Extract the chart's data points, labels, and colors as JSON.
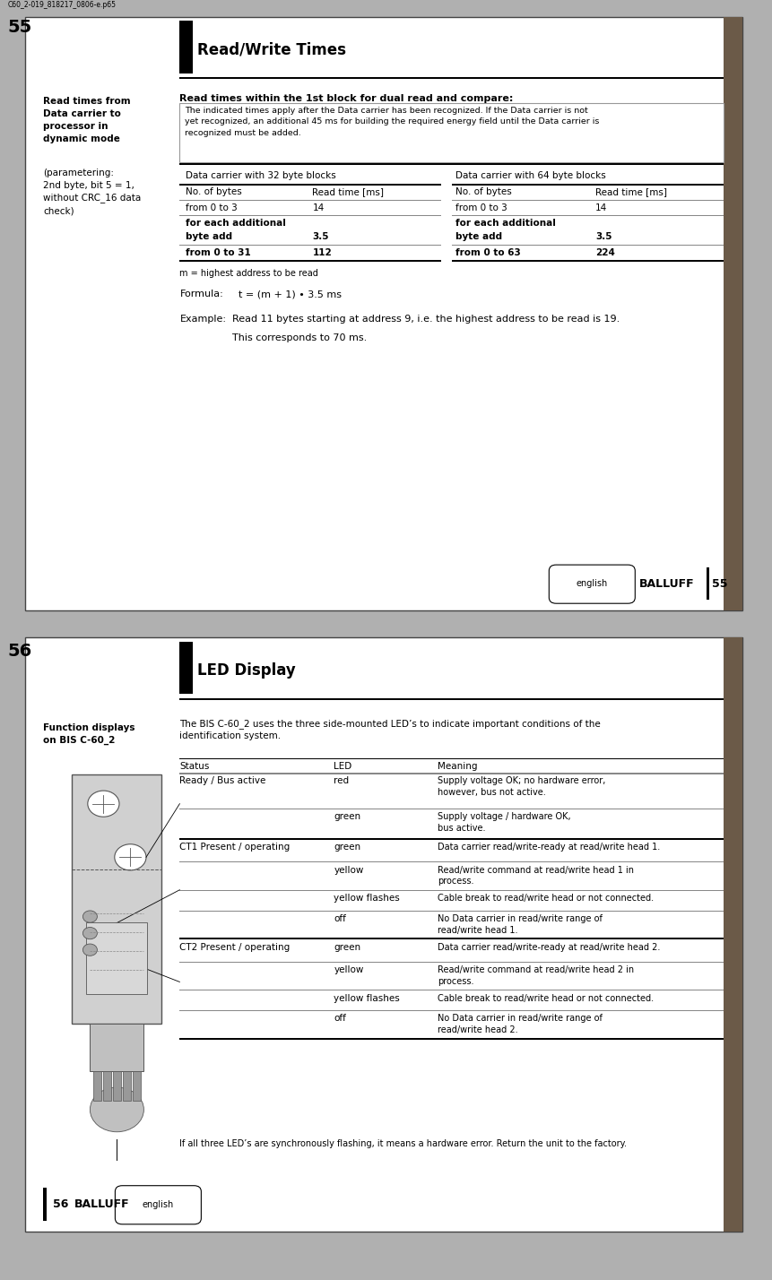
{
  "filename": "C60_2-019_818217_0806-e.p65",
  "page1": {
    "page_num": "55",
    "section_title": "Read/Write Times",
    "left_heading_bold": "Read times from\nData carrier to\nprocessor in\ndynamic mode",
    "left_subtext": "(parametering:\n2nd byte, bit 5 = 1,\nwithout CRC_16 data\ncheck)",
    "right_heading": "Read times within the 1st block for dual read and compare:",
    "info_box": "The indicated times apply after the Data carrier has been recognized. If the Data carrier is not\nyet recognized, an additional 45 ms for building the required energy field until the Data carrier is\nrecognized must be added.",
    "table1_header": "Data carrier with 32 byte blocks",
    "table1_col1": "No. of bytes",
    "table1_col2": "Read time [ms]",
    "table2_header": "Data carrier with 64 byte blocks",
    "table2_col1": "No. of bytes",
    "table2_col2": "Read time [ms]",
    "footnote": "m = highest address to be read",
    "formula_label": "Formula:",
    "formula_value": "  t = (m + 1) • 3.5 ms",
    "example_label": "Example:",
    "example_value": "  Read 11 bytes starting at address 9, i.e. the highest address to be read is 19.\n           This corresponds to 70 ms.",
    "footer_lang": "english",
    "footer_brand": "BALLUFF",
    "footer_num": "55"
  },
  "page2": {
    "page_num": "56",
    "section_title": "LED Display",
    "left_heading": "Function displays\non BIS C-60_2",
    "right_intro": "The BIS C-60_2 uses the three side-mounted LED’s to indicate important conditions of the\nidentification system.",
    "table_cols": [
      "Status",
      "LED",
      "Meaning"
    ],
    "table_rows": [
      [
        "Ready / Bus active",
        "red",
        "Supply voltage OK; no hardware error,\nhowever, bus not active."
      ],
      [
        "",
        "green",
        "Supply voltage / hardware OK,\nbus active."
      ],
      [
        "CT1 Present / operating",
        "green",
        "Data carrier read/write-ready at read/write head 1."
      ],
      [
        "",
        "yellow",
        "Read/write command at read/write head 1 in\nprocess."
      ],
      [
        "",
        "yellow flashes",
        "Cable break to read/write head or not connected."
      ],
      [
        "",
        "off",
        "No Data carrier in read/write range of\nread/write head 1."
      ],
      [
        "CT2 Present / operating",
        "green",
        "Data carrier read/write-ready at read/write head 2."
      ],
      [
        "",
        "yellow",
        "Read/write command at read/write head 2 in\nprocess."
      ],
      [
        "",
        "yellow flashes",
        "Cable break to read/write head or not connected."
      ],
      [
        "",
        "off",
        "No Data carrier in read/write range of\nread/write head 2."
      ]
    ],
    "footer_note": "If all three LED’s are synchronously flashing, it means a hardware error. Return the unit to the factory.",
    "footer_num": "56",
    "footer_brand": "BALLUFF",
    "footer_lang": "english"
  },
  "colors": {
    "page_outer": "#b0b0b0",
    "page_white": "#ffffff",
    "page_border": "#444444",
    "accent_dark": "#2a2218",
    "accent_brown": "#6b5a48",
    "text_black": "#000000",
    "line_black": "#000000",
    "line_gray": "#888888",
    "info_box_border": "#999999",
    "device_fill": "#cccccc",
    "device_border": "#555555"
  }
}
